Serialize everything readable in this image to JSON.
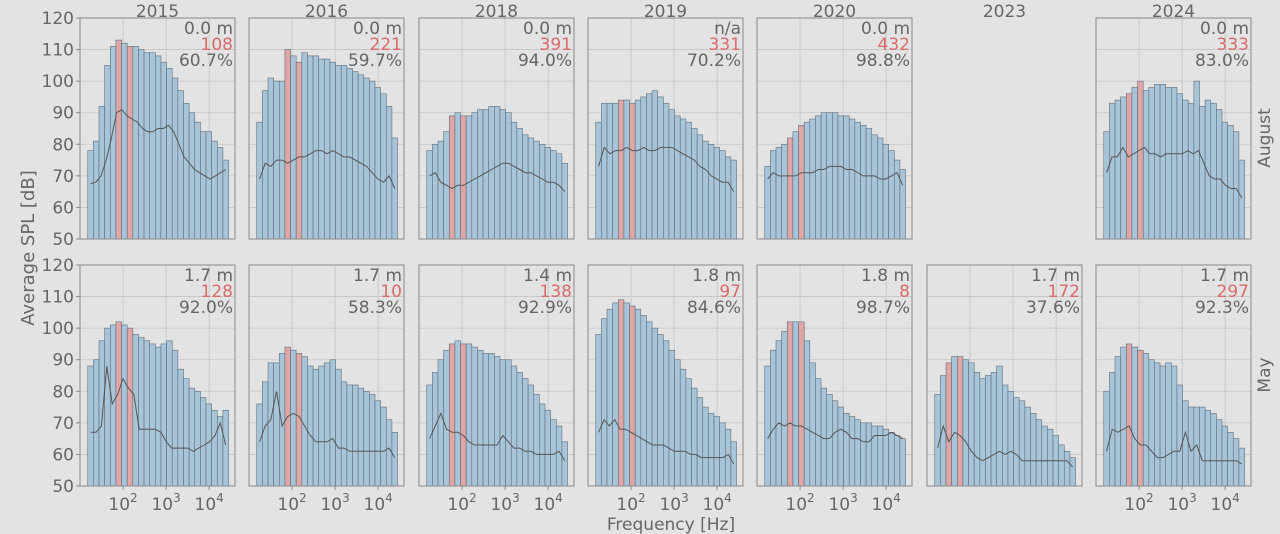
{
  "figure": {
    "ylabel": "Average SPL [dB]",
    "xlabel": "Frequency [Hz]",
    "row_labels": [
      "August",
      "May"
    ],
    "colors": {
      "bar": "#a8c4d8",
      "bar_edge": "#5f6f7b",
      "highlight_bar": "#e0a6a6",
      "line": "#555555",
      "red_text": "#d96b6b",
      "text": "#666666",
      "panel_bg": "#e3e3e3",
      "grid": "#c4c4c4",
      "spine": "#8a8a8a"
    }
  },
  "chart_data": [
    {
      "type": "bar",
      "row": 0,
      "col": 0,
      "title": "2015",
      "depth": "0.0 m",
      "count": "108",
      "percent": "60.7%",
      "ylim": [
        50,
        120
      ],
      "yticks": [
        "50",
        "60",
        "70",
        "80",
        "90",
        "100",
        "110",
        "120"
      ],
      "x_ticks": [],
      "highlight": [
        5,
        7
      ],
      "values": [
        78,
        81,
        92,
        105,
        111,
        113,
        112,
        111,
        111,
        110,
        109,
        109,
        108,
        106,
        104,
        101,
        97,
        93,
        90,
        87,
        84,
        84,
        81,
        79,
        75
      ],
      "line": [
        67.5,
        68,
        70,
        75,
        82,
        90,
        91,
        89,
        88,
        87,
        85,
        84,
        84,
        85,
        85,
        86,
        84,
        80,
        76,
        74,
        72,
        71,
        70,
        69,
        70,
        71,
        72
      ]
    },
    {
      "type": "bar",
      "row": 0,
      "col": 1,
      "title": "2016",
      "depth": "0.0 m",
      "count": "221",
      "percent": "59.7%",
      "ylim": [
        50,
        120
      ],
      "yticks": [],
      "x_ticks": [],
      "highlight": [
        5,
        7
      ],
      "values": [
        87,
        97,
        101,
        100,
        100,
        110,
        108,
        106,
        109,
        108,
        108,
        107,
        107,
        106,
        105,
        105,
        104,
        103,
        102,
        101,
        100,
        98,
        96,
        92,
        82
      ],
      "line": [
        69,
        74,
        73,
        75,
        75,
        74,
        75,
        76,
        76,
        77,
        78,
        78,
        77,
        78,
        77,
        76,
        76,
        75,
        74,
        73,
        71,
        69,
        68,
        70,
        66
      ]
    },
    {
      "type": "bar",
      "row": 0,
      "col": 2,
      "title": "2018",
      "depth": "0.0 m",
      "count": "391",
      "percent": "94.0%",
      "ylim": [
        50,
        120
      ],
      "yticks": [],
      "x_ticks": [],
      "highlight": [
        4,
        6
      ],
      "values": [
        78,
        80,
        81,
        84,
        89,
        90,
        89,
        89,
        90,
        91,
        91,
        92,
        92,
        91,
        90,
        87,
        85,
        83,
        82,
        81,
        80,
        79,
        78,
        77,
        74
      ],
      "line": [
        70,
        71,
        68,
        67,
        66,
        67,
        67,
        68,
        69,
        70,
        71,
        72,
        73,
        74,
        74,
        73,
        72,
        71,
        71,
        70,
        69,
        68,
        68,
        67,
        65
      ]
    },
    {
      "type": "bar",
      "row": 0,
      "col": 3,
      "title": "2019",
      "depth": "n/a",
      "count": "331",
      "percent": "70.2%",
      "ylim": [
        50,
        120
      ],
      "yticks": [],
      "x_ticks": [],
      "highlight": [
        4,
        6
      ],
      "values": [
        87,
        93,
        93,
        93,
        94,
        94,
        93,
        94,
        95,
        96,
        97,
        95,
        93,
        91,
        89,
        88,
        87,
        85,
        83,
        81,
        80,
        79,
        78,
        76,
        75
      ],
      "line": [
        73,
        79,
        77,
        78,
        78,
        79,
        78,
        78,
        79,
        78,
        78,
        79,
        79,
        79,
        78,
        77,
        76,
        75,
        73,
        72,
        70,
        69,
        68,
        68,
        65
      ]
    },
    {
      "type": "bar",
      "row": 0,
      "col": 4,
      "title": "2020",
      "depth": "0.0 m",
      "count": "432",
      "percent": "98.8%",
      "ylim": [
        50,
        120
      ],
      "yticks": [],
      "x_ticks": [],
      "highlight": [
        4,
        6
      ],
      "values": [
        73,
        78,
        79,
        80,
        82,
        84,
        86,
        87,
        88,
        89,
        90,
        90,
        90,
        89,
        89,
        88,
        87,
        86,
        85,
        83,
        82,
        80,
        78,
        75,
        72
      ],
      "line": [
        69,
        71,
        70,
        70,
        70,
        70,
        71,
        71,
        71,
        72,
        72,
        73,
        73,
        73,
        72,
        72,
        71,
        70,
        70,
        70,
        69,
        69,
        70,
        71,
        67
      ]
    },
    {
      "type": "bar",
      "row": 0,
      "col": 5,
      "title": "2023",
      "empty": true,
      "depth": "",
      "count": "",
      "percent": "",
      "ylim": [
        50,
        120
      ],
      "yticks": [],
      "x_ticks": [],
      "highlight": [],
      "values": [],
      "line": []
    },
    {
      "type": "bar",
      "row": 0,
      "col": 6,
      "title": "2024",
      "depth": "0.0 m",
      "count": "333",
      "percent": "83.0%",
      "ylim": [
        50,
        120
      ],
      "yticks": [],
      "x_ticks": [],
      "highlight": [
        4,
        6
      ],
      "values": [
        84,
        93,
        94,
        95,
        96,
        98,
        100,
        97,
        98,
        99,
        99,
        98,
        98,
        96,
        94,
        93,
        100,
        92,
        94,
        93,
        91,
        87,
        86,
        84,
        75
      ],
      "line": [
        71,
        76,
        76,
        79,
        76,
        77,
        78,
        79,
        77,
        77,
        76,
        77,
        77,
        77,
        77,
        78,
        77,
        78,
        74,
        70,
        69,
        69,
        67,
        66,
        66,
        63
      ]
    },
    {
      "type": "bar",
      "row": 1,
      "col": 0,
      "title": "",
      "depth": "1.7 m",
      "count": "128",
      "percent": "92.0%",
      "ylim": [
        50,
        120
      ],
      "yticks": [
        "50",
        "60",
        "70",
        "80",
        "90",
        "100",
        "110",
        "120"
      ],
      "x_ticks": [
        "10^2",
        "10^3",
        "10^4"
      ],
      "highlight": [
        5,
        7
      ],
      "values": [
        88,
        90,
        96,
        100,
        101,
        102,
        101,
        100,
        98,
        97,
        96,
        95,
        94,
        95,
        96,
        93,
        87,
        84,
        81,
        80,
        78,
        76,
        74,
        72,
        74
      ],
      "line": [
        67,
        67,
        69,
        88,
        76,
        79,
        84,
        81,
        79,
        68,
        68,
        68,
        68,
        67,
        64,
        62,
        62,
        62,
        62,
        61,
        62,
        63,
        64,
        66,
        70,
        63
      ]
    },
    {
      "type": "bar",
      "row": 1,
      "col": 1,
      "title": "",
      "depth": "1.7 m",
      "count": "10",
      "percent": "58.3%",
      "ylim": [
        50,
        120
      ],
      "yticks": [],
      "x_ticks": [
        "10^2",
        "10^3",
        "10^4"
      ],
      "highlight": [
        5,
        7
      ],
      "values": [
        76,
        83,
        89,
        89,
        92,
        94,
        93,
        92,
        91,
        88,
        87,
        88,
        89,
        90,
        87,
        83,
        82,
        82,
        81,
        80,
        79,
        77,
        75,
        71,
        67
      ],
      "line": [
        64,
        69,
        71,
        80,
        69,
        72,
        73,
        72,
        69,
        66,
        64,
        64,
        64,
        65,
        62,
        62,
        61,
        61,
        61,
        61,
        61,
        61,
        61,
        62,
        59
      ]
    },
    {
      "type": "bar",
      "row": 1,
      "col": 2,
      "title": "",
      "depth": "1.4 m",
      "count": "138",
      "percent": "92.9%",
      "ylim": [
        50,
        120
      ],
      "yticks": [],
      "x_ticks": [
        "10^2",
        "10^3",
        "10^4"
      ],
      "highlight": [
        4,
        6
      ],
      "values": [
        82,
        86,
        90,
        93,
        95,
        96,
        95,
        95,
        94,
        93,
        92,
        92,
        91,
        90,
        90,
        88,
        86,
        84,
        82,
        79,
        76,
        74,
        71,
        69,
        64
      ],
      "line": [
        65,
        69,
        73,
        68,
        67,
        67,
        66,
        64,
        63,
        63,
        63,
        63,
        63,
        66,
        64,
        62,
        62,
        61,
        61,
        60,
        60,
        60,
        60,
        61,
        58
      ]
    },
    {
      "type": "bar",
      "row": 1,
      "col": 3,
      "title": "",
      "depth": "1.8 m",
      "count": "97",
      "percent": "84.6%",
      "ylim": [
        50,
        120
      ],
      "yticks": [],
      "x_ticks": [
        "10^2",
        "10^3",
        "10^4"
      ],
      "highlight": [
        4,
        6
      ],
      "values": [
        98,
        103,
        106,
        108,
        109,
        108,
        107,
        106,
        104,
        102,
        100,
        98,
        96,
        93,
        90,
        87,
        84,
        81,
        78,
        75,
        73,
        72,
        70,
        68,
        64
      ],
      "line": [
        67,
        71,
        69,
        71,
        68,
        68,
        67,
        66,
        65,
        64,
        63,
        63,
        63,
        62,
        61,
        61,
        61,
        60,
        60,
        59,
        59,
        59,
        59,
        59,
        60,
        57
      ]
    },
    {
      "type": "bar",
      "row": 1,
      "col": 4,
      "title": "",
      "depth": "1.8 m",
      "count": "8",
      "percent": "98.7%",
      "ylim": [
        50,
        120
      ],
      "yticks": [],
      "x_ticks": [
        "10^2",
        "10^3",
        "10^4"
      ],
      "highlight": [
        4,
        6
      ],
      "values": [
        88,
        93,
        96,
        99,
        102,
        102,
        102,
        96,
        89,
        84,
        81,
        79,
        77,
        75,
        73,
        72,
        71,
        70,
        70,
        69,
        69,
        68,
        67,
        66,
        65
      ],
      "line": [
        65,
        68,
        70,
        69,
        70,
        69,
        69,
        68,
        67,
        66,
        65,
        65,
        67,
        68,
        67,
        65,
        65,
        64,
        64,
        66,
        66,
        66,
        67,
        66,
        65
      ]
    },
    {
      "type": "bar",
      "row": 1,
      "col": 5,
      "title": "",
      "depth": "1.7 m",
      "count": "172",
      "percent": "37.6%",
      "ylim": [
        50,
        120
      ],
      "yticks": [],
      "x_ticks": [],
      "highlight": [
        2,
        4
      ],
      "values": [
        79,
        85,
        89,
        91,
        91,
        90,
        89,
        86,
        84,
        85,
        86,
        88,
        82,
        80,
        78,
        77,
        75,
        73,
        71,
        69,
        68,
        66,
        63,
        61,
        59
      ],
      "line": [
        62,
        69,
        64,
        67,
        66,
        64,
        61,
        59,
        58,
        59,
        60,
        61,
        60,
        61,
        60,
        58,
        58,
        58,
        58,
        58,
        58,
        58,
        58,
        58,
        56
      ]
    },
    {
      "type": "bar",
      "row": 1,
      "col": 6,
      "title": "",
      "depth": "1.7 m",
      "count": "297",
      "percent": "92.3%",
      "ylim": [
        50,
        120
      ],
      "yticks": [],
      "x_ticks": [
        "10^2",
        "10^3",
        "10^4"
      ],
      "highlight": [
        4,
        6
      ],
      "values": [
        80,
        86,
        91,
        94,
        95,
        94,
        93,
        92,
        90,
        89,
        88,
        89,
        88,
        82,
        77,
        75,
        75,
        75,
        74,
        73,
        71,
        69,
        67,
        65,
        62
      ],
      "line": [
        61,
        68,
        67,
        68,
        69,
        65,
        63,
        63,
        61,
        59,
        59,
        60,
        61,
        61,
        67,
        61,
        63,
        58,
        58,
        58,
        58,
        58,
        58,
        58,
        57
      ]
    }
  ]
}
